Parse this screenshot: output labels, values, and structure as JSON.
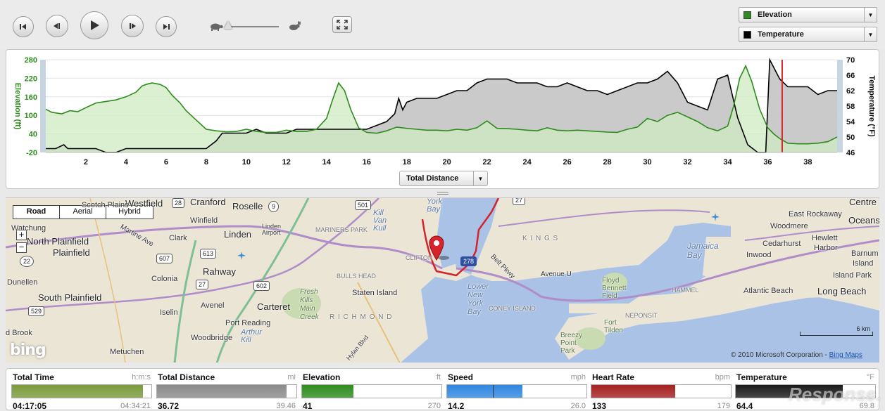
{
  "toolbar": {
    "buttons": [
      "skip-to-start",
      "step-back",
      "play",
      "step-forward",
      "skip-to-end"
    ],
    "speed_level": 0.0,
    "selectors": [
      {
        "label": "Elevation",
        "color": "#2e8b1e"
      },
      {
        "label": "Temperature",
        "color": "#000000"
      }
    ]
  },
  "chart_data": {
    "type": "area",
    "xlabel": "Total Distance",
    "x_ticks": [
      "2",
      "4",
      "6",
      "8",
      "10",
      "12",
      "14",
      "16",
      "18",
      "20",
      "22",
      "24",
      "26",
      "28",
      "30",
      "32",
      "34",
      "36",
      "38"
    ],
    "xlim": [
      0,
      39.46
    ],
    "left_axis": {
      "label": "Elevation (ft)",
      "ticks": [
        "280",
        "220",
        "160",
        "100",
        "40",
        "-20"
      ],
      "ylim": [
        -20,
        280
      ],
      "color": "#2e8b1e"
    },
    "right_axis": {
      "label": "Temperature (°F)",
      "ticks": [
        "70",
        "66",
        "62",
        "58",
        "54",
        "50",
        "46"
      ],
      "ylim": [
        46,
        70
      ]
    },
    "cursor_x": 36.72,
    "series": [
      {
        "name": "Elevation",
        "color": "#2e8b1e",
        "fill": "#cfe9c2",
        "x": [
          0,
          0.3,
          0.8,
          1.2,
          1.6,
          2,
          2.5,
          3,
          3.5,
          4,
          4.5,
          4.8,
          5,
          5.3,
          5.7,
          6,
          6.3,
          6.7,
          7,
          7.5,
          8,
          8.5,
          9,
          9.5,
          10,
          10.5,
          11,
          11.5,
          12,
          12.5,
          13,
          13.5,
          14,
          14.3,
          14.6,
          14.9,
          15.2,
          15.6,
          16,
          16.5,
          17,
          17.5,
          18,
          18.5,
          19,
          19.5,
          20,
          20.5,
          21,
          21.5,
          22,
          22.5,
          23,
          23.5,
          24,
          24.5,
          25,
          25.5,
          26,
          26.5,
          27,
          27.5,
          28,
          28.5,
          29,
          29.5,
          30,
          30.5,
          31,
          31.5,
          32,
          32.5,
          33,
          33.5,
          34,
          34.3,
          34.6,
          34.9,
          35.2,
          35.6,
          36,
          36.3,
          36.6,
          37,
          37.5,
          38,
          38.5,
          39,
          39.46
        ],
        "y": [
          120,
          110,
          105,
          115,
          112,
          125,
          140,
          145,
          150,
          160,
          175,
          195,
          200,
          205,
          200,
          190,
          165,
          140,
          115,
          85,
          55,
          50,
          47,
          48,
          55,
          48,
          45,
          45,
          52,
          48,
          48,
          55,
          90,
          150,
          205,
          180,
          120,
          60,
          45,
          42,
          50,
          62,
          58,
          55,
          52,
          52,
          50,
          55,
          52,
          60,
          82,
          58,
          57,
          55,
          52,
          50,
          60,
          52,
          50,
          52,
          50,
          48,
          46,
          45,
          55,
          62,
          90,
          80,
          100,
          110,
          95,
          80,
          60,
          50,
          65,
          130,
          220,
          260,
          210,
          120,
          60,
          40,
          25,
          10,
          8,
          8,
          10,
          15,
          30
        ]
      },
      {
        "name": "Temperature",
        "color": "#000000",
        "fill": "#c4c4c4",
        "x": [
          0,
          0.5,
          0.9,
          1.1,
          1.5,
          2,
          2.5,
          3,
          3.5,
          4,
          4.5,
          5,
          5.5,
          6,
          6.5,
          7,
          7.5,
          8,
          8.5,
          8.8,
          9,
          9.5,
          10,
          10.5,
          11,
          11.5,
          12,
          12.5,
          13,
          13.5,
          14,
          14.5,
          15,
          15.5,
          16,
          16.5,
          17,
          17.4,
          17.6,
          17.8,
          18,
          18.5,
          19,
          19.5,
          20,
          20.5,
          21,
          21.5,
          22,
          22.5,
          23,
          23.5,
          24,
          24.5,
          25,
          25.5,
          26,
          26.5,
          27,
          27.5,
          28,
          28.5,
          29,
          29.5,
          30,
          30.5,
          31,
          31.5,
          32,
          32.5,
          33,
          33.5,
          34,
          34.5,
          35,
          35.5,
          35.9,
          36.1,
          36.3,
          36.6,
          37,
          37.5,
          38,
          38.5,
          39,
          39.46
        ],
        "y": [
          47,
          47,
          48,
          47,
          47,
          47,
          47,
          46,
          46,
          47,
          47,
          47,
          47,
          47,
          47,
          47,
          47,
          47,
          49,
          51,
          51,
          51,
          51,
          52,
          51,
          51,
          51,
          52,
          52,
          52,
          52,
          52,
          52,
          52,
          52,
          53,
          54,
          56,
          60,
          57,
          59,
          60,
          60,
          60,
          61,
          62,
          62,
          64,
          65,
          65,
          65,
          64,
          64,
          64,
          63,
          63,
          64,
          63,
          62,
          62,
          61,
          62,
          63,
          64,
          64,
          65,
          67,
          64,
          59,
          58,
          57,
          65,
          66,
          55,
          48,
          46,
          46,
          70,
          68,
          65,
          63,
          63,
          63,
          61,
          62,
          62
        ]
      }
    ]
  },
  "map": {
    "map_types": [
      "Road",
      "Aerial",
      "Hybrid"
    ],
    "active_map_type": "Road",
    "labels": {
      "westfield": "Westfield",
      "cranford": "Cranford",
      "roselle": "Roselle",
      "scotch_plains": "Scotch Plains",
      "winfield": "Winfield",
      "linden": "Linden",
      "linden_airport": "Linden Airport",
      "watchung": "Watchung",
      "north_plainfield": "North Plainfield",
      "plainfield": "Plainfield",
      "clark": "Clark",
      "martine_ave": "Martine Ave",
      "rahway": "Rahway",
      "colonia": "Colonia",
      "dunellen": "Dunellen",
      "south_plainfield": "South Plainfield",
      "avenel": "Avenel",
      "carteret": "Carteret",
      "iselin": "Iselin",
      "port_reading": "Port Reading",
      "woodbridge": "Woodbridge",
      "arthur_kill": "Arthur Kill",
      "bound_brook": "d Brook",
      "metuchen": "Metuchen",
      "mariners_park": "MARINERS PARK",
      "kill_van_kull": "Kill Van Kull",
      "york_bay": "York Bay",
      "clifton": "CLIFTON",
      "bulls_head": "BULLS HEAD",
      "staten_island": "Staten Island",
      "fresh_kills": "Fresh Kills Main Creek",
      "richmond": "R I C H M O N D",
      "hylan_blvd": "Hylan Blvd",
      "kings": "K I N G S",
      "avenue_u": "Avenue U",
      "belt_pkwy": "Belt Pkwy",
      "lower_ny_bay": "Lower New York Bay",
      "coney_island": "CONEY ISLAND",
      "floyd_bennett": "Floyd Bennett Field",
      "fort_tilden": "Fort Tilden",
      "breezy_point": "Breezy Point Park",
      "neponsit": "NEPONSIT",
      "hammel": "HAMMEL",
      "jamaica_bay": "Jamaica Bay",
      "centre": "Centre",
      "east_rockaway": "East Rockaway",
      "oceanside": "Oceans",
      "woodmere": "Woodmere",
      "cedarhurst": "Cedarhurst",
      "hewlett": "Hewlett",
      "harbor": "Harbor",
      "inwood": "Inwood",
      "barnum": "Barnum",
      "island": "Island",
      "island_park": "Island Park",
      "atlantic_beach": "Atlantic Beach",
      "long_beach": "Long Beach"
    },
    "shields": {
      "r28": "28",
      "r9": "9",
      "r501": "501",
      "r27a": "27",
      "r27b": "27",
      "r613": "613",
      "r607": "607",
      "r602": "602",
      "r22": "22",
      "r529": "529",
      "r278": "278"
    },
    "scale_label": "6 km",
    "copyright": "© 2010 Microsoft Corporation - ",
    "copyright_link": "Bing Maps",
    "logo": "bing"
  },
  "stats": [
    {
      "name": "Total Time",
      "unit": "h:m:s",
      "current": "04:17:05",
      "max": "04:34:21",
      "fill_fraction": 0.94,
      "color": "#7a9a3a"
    },
    {
      "name": "Total Distance",
      "unit": "mi",
      "current": "36.72",
      "max": "39.46",
      "fill_fraction": 0.93,
      "color": "#8a8a8a"
    },
    {
      "name": "Elevation",
      "unit": "ft",
      "current": "41",
      "max": "270",
      "fill_fraction": 0.37,
      "color": "#2e8b1e"
    },
    {
      "name": "Speed",
      "unit": "mph",
      "current": "14.2",
      "max": "26.0",
      "fill_fraction": 0.54,
      "color": "#2f86e0",
      "avg_fraction": 0.33
    },
    {
      "name": "Heart Rate",
      "unit": "bpm",
      "current": "133",
      "max": "179",
      "fill_fraction": 0.6,
      "color": "#a52020"
    },
    {
      "name": "Temperature",
      "unit": "°F",
      "current": "64.4",
      "max": "69.8",
      "fill_fraction": 0.77,
      "color": "#1a1a1a"
    }
  ],
  "watermark": "Response."
}
